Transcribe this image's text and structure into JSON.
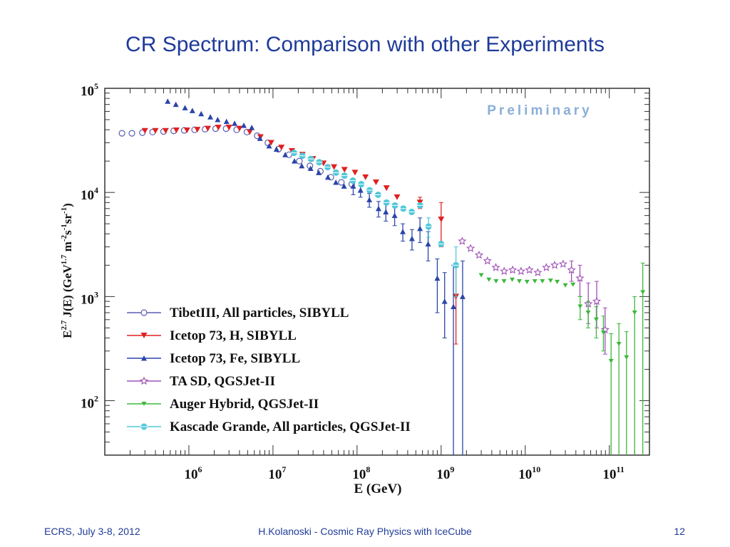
{
  "slide": {
    "title": "CR Spectrum: Comparison with other Experiments",
    "footer_left": "ECRS, July 3-8, 2012",
    "footer_center": "H.Kolanoski - Cosmic Ray Physics with IceCube",
    "footer_right": "12"
  },
  "colors": {
    "title": "#1f3b99",
    "preliminary": "#8aaed8",
    "tibet": "#5a5fb0",
    "icetop_h": "#e02020",
    "icetop_fe": "#2a45a8",
    "ta": "#a050b8",
    "auger": "#3cb83c",
    "kascade": "#50c8d8"
  },
  "chart_data": {
    "type": "scatter",
    "title": "",
    "watermark": "Preliminary",
    "xlabel": "E (GeV)",
    "ylabel": "E^2.7 J(E) (GeV^1.7 m^-2 s^-1 sr^-1)",
    "ylabel_parts": {
      "a": "E",
      "b": "2.7",
      "c": " J(E) (GeV",
      "d": "1.7",
      "e": " m",
      "f": "-2",
      "g": "s",
      "h": "-1",
      "i": "sr",
      "j": "-1",
      "k": ")"
    },
    "xscale": "log",
    "yscale": "log",
    "xlim": [
      100000,
      300000000000
    ],
    "ylim": [
      30,
      100000
    ],
    "x_ticks": [
      {
        "base": "10",
        "exp": "6"
      },
      {
        "base": "10",
        "exp": "7"
      },
      {
        "base": "10",
        "exp": "8"
      },
      {
        "base": "10",
        "exp": "9"
      },
      {
        "base": "10",
        "exp": "10"
      },
      {
        "base": "10",
        "exp": "11"
      }
    ],
    "y_ticks": [
      {
        "base": "10",
        "exp": "2"
      },
      {
        "base": "10",
        "exp": "3"
      },
      {
        "base": "10",
        "exp": "4"
      },
      {
        "base": "10",
        "exp": "5"
      }
    ],
    "legend_position": "lower-left",
    "series": [
      {
        "name": "TibetIII, All particles, SIBYLL",
        "color_key": "tibet",
        "marker": "open-circle",
        "points": [
          [
            160000,
            37000,
            0,
            0
          ],
          [
            210000,
            37000,
            0,
            0
          ],
          [
            280000,
            37500,
            0,
            0
          ],
          [
            370000,
            38000,
            0,
            0
          ],
          [
            500000,
            38500,
            0,
            0
          ],
          [
            660000,
            39000,
            0,
            0
          ],
          [
            880000,
            39500,
            0,
            0
          ],
          [
            1170000,
            40000,
            0,
            0
          ],
          [
            1560000,
            40500,
            0,
            0
          ],
          [
            2080000,
            41000,
            0,
            0
          ],
          [
            2770000,
            41000,
            0,
            0
          ],
          [
            3700000,
            40000,
            0,
            0
          ],
          [
            4900000,
            38000,
            0,
            0
          ],
          [
            6500000,
            35000,
            0,
            0
          ],
          [
            8700000,
            30000,
            0,
            0
          ],
          [
            11600000,
            26000,
            0,
            0
          ],
          [
            15500000,
            23000,
            0,
            0
          ],
          [
            20600000,
            20000,
            0,
            0
          ],
          [
            27500000,
            18000,
            0,
            0
          ],
          [
            36600000,
            16000,
            0,
            0
          ],
          [
            48800000,
            14000,
            0,
            0
          ],
          [
            65000000,
            12500,
            0,
            0
          ],
          [
            86700000,
            12000,
            0,
            0
          ]
        ]
      },
      {
        "name": "Icetop 73, H, SIBYLL",
        "color_key": "icetop_h",
        "marker": "down-triangle",
        "points": [
          [
            300000,
            39000,
            0,
            0
          ],
          [
            400000,
            39000,
            0,
            0
          ],
          [
            530000,
            39000,
            0,
            0
          ],
          [
            710000,
            39500,
            0,
            0
          ],
          [
            950000,
            39500,
            0,
            0
          ],
          [
            1260000,
            40000,
            0,
            0
          ],
          [
            1680000,
            41000,
            0,
            0
          ],
          [
            2240000,
            42000,
            0,
            0
          ],
          [
            3000000,
            42000,
            0,
            0
          ],
          [
            4000000,
            41000,
            0,
            0
          ],
          [
            5300000,
            38000,
            0,
            0
          ],
          [
            7100000,
            34000,
            0,
            0
          ],
          [
            9500000,
            30000,
            0,
            0
          ],
          [
            12600000,
            27000,
            0,
            0
          ],
          [
            16800000,
            25000,
            0,
            0
          ],
          [
            22400000,
            23000,
            0,
            0
          ],
          [
            29900000,
            21000,
            0,
            0
          ],
          [
            39900000,
            19000,
            0,
            0
          ],
          [
            53200000,
            17500,
            0,
            0
          ],
          [
            70900000,
            16500,
            0,
            0
          ],
          [
            94500000,
            15500,
            0,
            0
          ],
          [
            126000000,
            14000,
            0,
            0
          ],
          [
            168000000,
            12500,
            0,
            0
          ],
          [
            224000000,
            11000,
            0,
            0
          ],
          [
            299000000,
            9000,
            0,
            0
          ],
          [
            560000000,
            8000,
            1000,
            1000
          ],
          [
            1000000000,
            5500,
            2500,
            2500
          ],
          [
            1500000000,
            1000,
            650,
            1000
          ]
        ]
      },
      {
        "name": "Icetop 73, Fe, SIBYLL",
        "color_key": "icetop_fe",
        "marker": "up-triangle",
        "points": [
          [
            560000,
            75000,
            0,
            0
          ],
          [
            700000,
            70000,
            0,
            0
          ],
          [
            900000,
            65000,
            0,
            0
          ],
          [
            1100000,
            61000,
            0,
            0
          ],
          [
            1400000,
            57000,
            0,
            0
          ],
          [
            1800000,
            53000,
            0,
            0
          ],
          [
            2200000,
            50000,
            0,
            0
          ],
          [
            2800000,
            48000,
            0,
            0
          ],
          [
            3500000,
            46000,
            0,
            0
          ],
          [
            4500000,
            44000,
            0,
            0
          ],
          [
            5600000,
            42000,
            0,
            0
          ],
          [
            7000000,
            33000,
            0,
            0
          ],
          [
            9000000,
            28000,
            0,
            0
          ],
          [
            11000000,
            26000,
            0,
            0
          ],
          [
            14000000,
            23000,
            0,
            0
          ],
          [
            18000000,
            20000,
            0,
            0
          ],
          [
            22000000,
            18000,
            0,
            0
          ],
          [
            28000000,
            17000,
            0,
            0
          ],
          [
            35000000,
            15500,
            0,
            0
          ],
          [
            45000000,
            14000,
            0,
            0
          ],
          [
            56000000,
            12500,
            0,
            0
          ],
          [
            70000000,
            11500,
            0,
            0
          ],
          [
            90000000,
            11500,
            2000,
            2000
          ],
          [
            110000000,
            10500,
            1500,
            1500
          ],
          [
            140000000,
            8500,
            1300,
            1300
          ],
          [
            180000000,
            7000,
            1200,
            1200
          ],
          [
            220000000,
            6500,
            1200,
            1200
          ],
          [
            280000000,
            6000,
            1200,
            1200
          ],
          [
            350000000,
            4200,
            800,
            800
          ],
          [
            450000000,
            3600,
            800,
            800
          ],
          [
            560000000,
            4500,
            1200,
            1200
          ],
          [
            700000000,
            3200,
            1000,
            1000
          ],
          [
            900000000,
            1500,
            800,
            800
          ],
          [
            1100000000,
            900,
            500,
            800
          ],
          [
            1400000000,
            800,
            770,
            1200
          ],
          [
            1800000000,
            1000,
            970,
            1200
          ]
        ]
      },
      {
        "name": "TA SD, QGSJet-II",
        "color_key": "ta",
        "marker": "open-star",
        "points": [
          [
            1780000000,
            3400,
            0,
            0
          ],
          [
            2240000000,
            2900,
            0,
            0
          ],
          [
            2820000000,
            2500,
            0,
            0
          ],
          [
            3550000000,
            2200,
            0,
            0
          ],
          [
            4470000000,
            1900,
            0,
            0
          ],
          [
            5620000000,
            1750,
            0,
            0
          ],
          [
            7080000000,
            1800,
            0,
            0
          ],
          [
            8910000000,
            1750,
            0,
            0
          ],
          [
            11200000000,
            1800,
            0,
            0
          ],
          [
            14100000000,
            1700,
            0,
            0
          ],
          [
            17800000000,
            1900,
            0,
            0
          ],
          [
            22400000000,
            2000,
            0,
            0
          ],
          [
            28200000000,
            2050,
            0,
            0
          ],
          [
            35500000000,
            1800,
            400,
            400
          ],
          [
            44700000000,
            1500,
            500,
            500
          ],
          [
            56200000000,
            850,
            300,
            500
          ],
          [
            70800000000,
            900,
            400,
            500
          ],
          [
            89100000000,
            480,
            200,
            300
          ]
        ]
      },
      {
        "name": "Auger Hybrid, QGSJet-II",
        "color_key": "auger",
        "marker": "small-down-triangle",
        "points": [
          [
            3000000000,
            1600,
            0,
            0
          ],
          [
            3700000000,
            1450,
            0,
            0
          ],
          [
            4500000000,
            1400,
            0,
            0
          ],
          [
            5600000000,
            1400,
            0,
            0
          ],
          [
            7000000000,
            1450,
            0,
            0
          ],
          [
            8500000000,
            1400,
            0,
            0
          ],
          [
            10500000000,
            1380,
            0,
            0
          ],
          [
            13000000000,
            1400,
            0,
            0
          ],
          [
            16000000000,
            1400,
            0,
            0
          ],
          [
            20000000000,
            1420,
            0,
            0
          ],
          [
            24000000000,
            1380,
            0,
            0
          ],
          [
            30000000000,
            1280,
            0,
            0
          ],
          [
            37000000000,
            1300,
            0,
            0
          ],
          [
            45000000000,
            800,
            200,
            200
          ],
          [
            56000000000,
            700,
            200,
            200
          ],
          [
            70000000000,
            600,
            200,
            200
          ],
          [
            85000000000,
            450,
            150,
            200
          ],
          [
            105000000000,
            240,
            210,
            200
          ],
          [
            130000000000,
            350,
            320,
            200
          ],
          [
            160000000000,
            260,
            230,
            200
          ],
          [
            200000000000,
            700,
            670,
            300
          ],
          [
            250000000000,
            1100,
            1070,
            1000
          ]
        ]
      },
      {
        "name": "Kascade Grande, All particles, QGSJet-II",
        "color_key": "kascade",
        "marker": "cross-circle",
        "points": [
          [
            17800000,
            24000,
            0,
            0
          ],
          [
            22400000,
            22500,
            0,
            0
          ],
          [
            28200000,
            21000,
            0,
            0
          ],
          [
            35500000,
            19500,
            0,
            0
          ],
          [
            44700000,
            17500,
            0,
            0
          ],
          [
            56200000,
            15500,
            0,
            0
          ],
          [
            70800000,
            14500,
            0,
            0
          ],
          [
            89100000,
            13000,
            0,
            0
          ],
          [
            112000000,
            12000,
            0,
            0
          ],
          [
            141000000,
            10500,
            0,
            0
          ],
          [
            178000000,
            9500,
            0,
            0
          ],
          [
            224000000,
            8000,
            0,
            0
          ],
          [
            282000000,
            7500,
            0,
            0
          ],
          [
            355000000,
            7000,
            0,
            0
          ],
          [
            447000000,
            6500,
            0,
            0
          ],
          [
            562000000,
            7500,
            0,
            0
          ],
          [
            708000000,
            4700,
            1000,
            1000
          ],
          [
            1000000000,
            3200,
            0,
            0
          ],
          [
            1500000000,
            2000,
            1000,
            1000
          ]
        ]
      }
    ]
  }
}
